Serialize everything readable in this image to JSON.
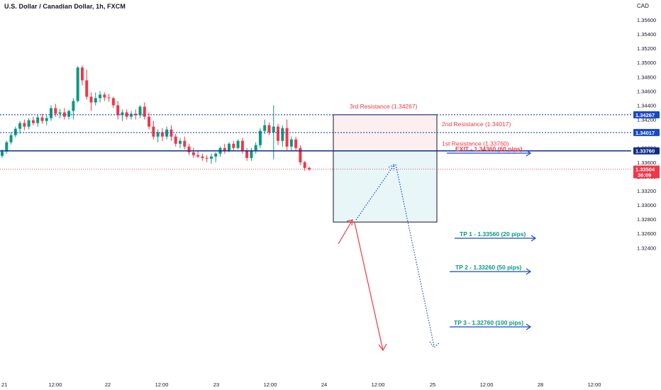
{
  "header": {
    "title": "U.S. Dollar / Canadian Dollar, 1h, FXCM",
    "currency": "CAD"
  },
  "chart_data": {
    "type": "candlestick",
    "symbol": "USDCAD",
    "timeframe": "1h",
    "ylim": [
      1.3235,
      1.3572
    ],
    "y_ticks": [
      "1.35600",
      "1.35400",
      "1.35200",
      "1.35000",
      "1.34800",
      "1.34600",
      "1.34400",
      "1.34200",
      "1.34000",
      "1.33800",
      "1.33600",
      "1.33400",
      "1.33200",
      "1.33000",
      "1.32800",
      "1.32600",
      "1.32400"
    ],
    "x_ticks": [
      "21",
      "12:00",
      "22",
      "12:00",
      "23",
      "12:00",
      "24",
      "12:00",
      "25",
      "12:00",
      "28",
      "12:00"
    ],
    "levels": {
      "third_resistance": {
        "value": 1.34267,
        "label": "3rd Resistance (1.34267)",
        "badge": "1.34267"
      },
      "second_resistance": {
        "value": 1.34017,
        "label": "2nd Resistance (1.34017)",
        "badge": "1.34017"
      },
      "first_resistance": {
        "value": 1.3376,
        "label": "1st Resistance (1.33760)",
        "badge": "1.33760"
      },
      "current_price": {
        "value": 1.33504,
        "badge": "1.33504",
        "countdown": "36:09"
      }
    },
    "targets": [
      {
        "label": "EXIT - 1.34360 (60 pips)",
        "color": "#f23645"
      },
      {
        "label": "TP 1 - 1.33560 (20 pips)",
        "color": "#089981"
      },
      {
        "label": "TP 2 - 1.33260 (50 pips)",
        "color": "#089981"
      },
      {
        "label": "TP 3 - 1.32760 (100 pips)",
        "color": "#089981"
      }
    ],
    "candles": [
      [
        1.3369,
        1.3378,
        1.3366,
        1.3375
      ],
      [
        1.3375,
        1.339,
        1.3372,
        1.3388
      ],
      [
        1.3388,
        1.3402,
        1.3385,
        1.3398
      ],
      [
        1.3398,
        1.341,
        1.3395,
        1.3407
      ],
      [
        1.3407,
        1.3418,
        1.34,
        1.3415
      ],
      [
        1.3415,
        1.342,
        1.3405,
        1.341
      ],
      [
        1.341,
        1.3422,
        1.3406,
        1.3419
      ],
      [
        1.3419,
        1.3424,
        1.3412,
        1.3415
      ],
      [
        1.3415,
        1.3426,
        1.341,
        1.3423
      ],
      [
        1.3423,
        1.3428,
        1.3414,
        1.3418
      ],
      [
        1.3418,
        1.3426,
        1.3412,
        1.3422
      ],
      [
        1.3422,
        1.344,
        1.3418,
        1.3436
      ],
      [
        1.3436,
        1.3442,
        1.3424,
        1.3428
      ],
      [
        1.3428,
        1.3435,
        1.3422,
        1.343
      ],
      [
        1.343,
        1.3436,
        1.342,
        1.3424
      ],
      [
        1.3424,
        1.3434,
        1.342,
        1.3432
      ],
      [
        1.3432,
        1.345,
        1.342,
        1.3446
      ],
      [
        1.3446,
        1.3495,
        1.3444,
        1.3493
      ],
      [
        1.3493,
        1.3496,
        1.3468,
        1.3475
      ],
      [
        1.3475,
        1.349,
        1.3448,
        1.3452
      ],
      [
        1.3452,
        1.3458,
        1.3432,
        1.3444
      ],
      [
        1.3444,
        1.3458,
        1.344,
        1.345
      ],
      [
        1.345,
        1.346,
        1.3444,
        1.3455
      ],
      [
        1.3455,
        1.3458,
        1.3446,
        1.3451
      ],
      [
        1.3451,
        1.3456,
        1.3445,
        1.345
      ],
      [
        1.345,
        1.3452,
        1.3436,
        1.344
      ],
      [
        1.344,
        1.3446,
        1.342,
        1.3426
      ],
      [
        1.3426,
        1.3434,
        1.3418,
        1.343
      ],
      [
        1.343,
        1.3434,
        1.342,
        1.3424
      ],
      [
        1.3424,
        1.3432,
        1.342,
        1.3428
      ],
      [
        1.3428,
        1.3434,
        1.342,
        1.3426
      ],
      [
        1.3426,
        1.344,
        1.3422,
        1.3438
      ],
      [
        1.3438,
        1.3444,
        1.342,
        1.3424
      ],
      [
        1.3424,
        1.343,
        1.3406,
        1.341
      ],
      [
        1.341,
        1.3418,
        1.3392,
        1.3396
      ],
      [
        1.3396,
        1.3406,
        1.3388,
        1.3402
      ],
      [
        1.3402,
        1.3408,
        1.339,
        1.3396
      ],
      [
        1.3396,
        1.341,
        1.3392,
        1.3406
      ],
      [
        1.3406,
        1.3412,
        1.339,
        1.3396
      ],
      [
        1.3396,
        1.34,
        1.3382,
        1.3386
      ],
      [
        1.3386,
        1.3394,
        1.338,
        1.339
      ],
      [
        1.339,
        1.3396,
        1.3378,
        1.3382
      ],
      [
        1.3382,
        1.3386,
        1.337,
        1.3374
      ],
      [
        1.3374,
        1.338,
        1.3366,
        1.337
      ],
      [
        1.337,
        1.3376,
        1.3366,
        1.3368
      ],
      [
        1.3368,
        1.3372,
        1.3362,
        1.3366
      ],
      [
        1.3366,
        1.337,
        1.336,
        1.3365
      ],
      [
        1.3365,
        1.3372,
        1.3358,
        1.3368
      ],
      [
        1.3368,
        1.3374,
        1.336,
        1.3372
      ],
      [
        1.3372,
        1.3382,
        1.3368,
        1.338
      ],
      [
        1.338,
        1.3386,
        1.3372,
        1.3376
      ],
      [
        1.3376,
        1.3388,
        1.3374,
        1.3386
      ],
      [
        1.3386,
        1.339,
        1.3376,
        1.338
      ],
      [
        1.338,
        1.3392,
        1.3378,
        1.339
      ],
      [
        1.339,
        1.3394,
        1.3372,
        1.3376
      ],
      [
        1.3376,
        1.338,
        1.3362,
        1.3366
      ],
      [
        1.3366,
        1.338,
        1.3362,
        1.3376
      ],
      [
        1.3376,
        1.3388,
        1.3372,
        1.3384
      ],
      [
        1.3384,
        1.3408,
        1.338,
        1.3404
      ],
      [
        1.3404,
        1.342,
        1.34,
        1.3412
      ],
      [
        1.3412,
        1.3416,
        1.3398,
        1.3402
      ],
      [
        1.3402,
        1.344,
        1.3364,
        1.341
      ],
      [
        1.341,
        1.3414,
        1.3384,
        1.339
      ],
      [
        1.339,
        1.3412,
        1.3382,
        1.3408
      ],
      [
        1.3408,
        1.342,
        1.3376,
        1.3382
      ],
      [
        1.3382,
        1.3396,
        1.3376,
        1.3392
      ],
      [
        1.3392,
        1.3396,
        1.3376,
        1.338
      ],
      [
        1.338,
        1.3384,
        1.3356,
        1.336
      ],
      [
        1.336,
        1.3362,
        1.3348,
        1.3352
      ],
      [
        1.3352,
        1.3354,
        1.3348,
        1.335
      ]
    ]
  }
}
